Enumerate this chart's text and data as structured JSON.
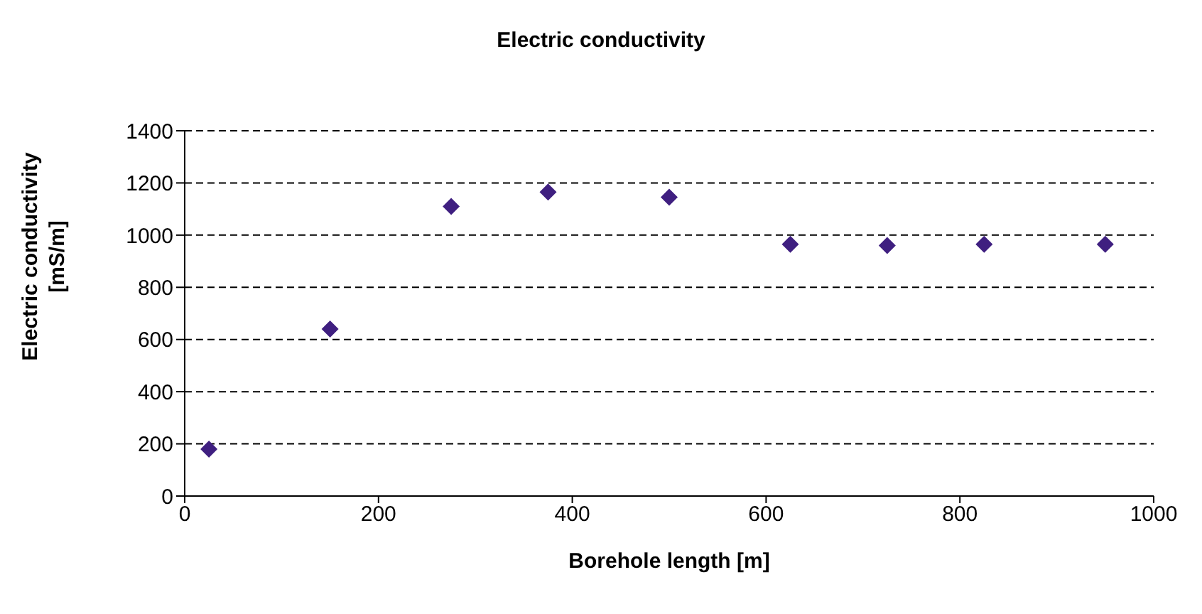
{
  "chart_data": {
    "type": "scatter",
    "title": "Electric conductivity",
    "xlabel": "Borehole length [m]",
    "ylabel": "Electric conductivity [mS/m]",
    "x": [
      25,
      150,
      275,
      375,
      500,
      625,
      725,
      825,
      950
    ],
    "series": [
      {
        "color": "#3f1f80",
        "values": [
          180,
          640,
          1110,
          1165,
          1145,
          965,
          960,
          965,
          965
        ]
      }
    ],
    "xlim": [
      0,
      1000
    ],
    "xticks": [
      0,
      200,
      400,
      600,
      800,
      1000
    ],
    "ylim": [
      0,
      1400
    ],
    "yticks": [
      0,
      200,
      400,
      600,
      800,
      1000,
      1200,
      1400
    ],
    "grid": "y",
    "legend": false,
    "marker": "diamond"
  }
}
